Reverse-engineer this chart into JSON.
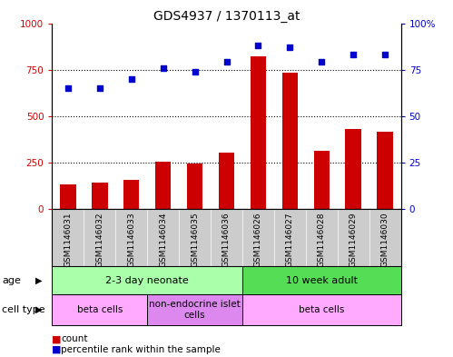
{
  "title": "GDS4937 / 1370113_at",
  "samples": [
    "GSM1146031",
    "GSM1146032",
    "GSM1146033",
    "GSM1146034",
    "GSM1146035",
    "GSM1146036",
    "GSM1146026",
    "GSM1146027",
    "GSM1146028",
    "GSM1146029",
    "GSM1146030"
  ],
  "counts": [
    130,
    140,
    155,
    255,
    245,
    305,
    820,
    735,
    315,
    430,
    415
  ],
  "percentiles": [
    65,
    65,
    70,
    76,
    74,
    79,
    88,
    87,
    79,
    83,
    83
  ],
  "bar_color": "#cc0000",
  "dot_color": "#0000cc",
  "ylim_left": [
    0,
    1000
  ],
  "ylim_right": [
    0,
    100
  ],
  "yticks_left": [
    0,
    250,
    500,
    750,
    1000
  ],
  "ytick_labels_left": [
    "0",
    "250",
    "500",
    "750",
    "1000"
  ],
  "yticks_right": [
    0,
    25,
    50,
    75,
    100
  ],
  "ytick_labels_right": [
    "0",
    "25",
    "50",
    "75",
    "100%"
  ],
  "age_groups": [
    {
      "label": "2-3 day neonate",
      "start": 0,
      "end": 6,
      "color": "#aaffaa"
    },
    {
      "label": "10 week adult",
      "start": 6,
      "end": 11,
      "color": "#55dd55"
    }
  ],
  "cell_type_groups": [
    {
      "label": "beta cells",
      "start": 0,
      "end": 3,
      "color": "#ffaaff"
    },
    {
      "label": "non-endocrine islet\ncells",
      "start": 3,
      "end": 6,
      "color": "#dd88ee"
    },
    {
      "label": "beta cells",
      "start": 6,
      "end": 11,
      "color": "#ffaaff"
    }
  ],
  "legend_count_color": "#cc0000",
  "legend_dot_color": "#0000cc",
  "legend_count_label": "count",
  "legend_dot_label": "percentile rank within the sample",
  "background_color": "#ffffff",
  "plot_bg": "#ffffff",
  "tick_area_bg": "#cccccc",
  "gray_label_bg": "#cccccc"
}
